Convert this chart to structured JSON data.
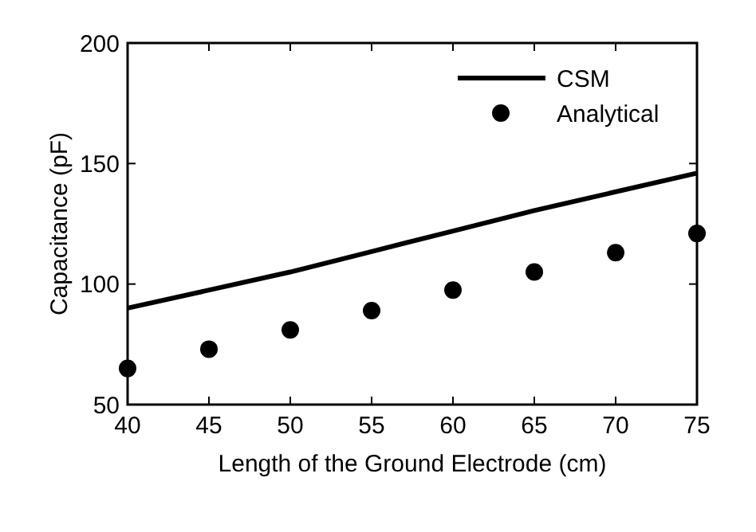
{
  "chart_data": {
    "type": "line",
    "xlabel": "Length of the Ground Electrode (cm)",
    "ylabel": "Capacitance (pF)",
    "x": [
      40,
      45,
      50,
      55,
      60,
      65,
      70,
      75
    ],
    "series": [
      {
        "name": "CSM",
        "color": "#000000",
        "marker": "none",
        "line_style": "solid",
        "x": [
          40,
          50,
          55,
          60,
          65,
          75
        ],
        "values": [
          90,
          105,
          113.5,
          122,
          130.5,
          146
        ]
      },
      {
        "name": "Analytical",
        "type": "scatter",
        "color": "#000000",
        "marker": "circle",
        "values": [
          65,
          73,
          81,
          89,
          97.5,
          105,
          113,
          121
        ]
      }
    ],
    "xlim": [
      40,
      75
    ],
    "xticks": [
      40,
      45,
      50,
      55,
      60,
      65,
      70,
      75
    ],
    "ylim": [
      50,
      200
    ],
    "yticks": [
      50,
      100,
      150,
      200
    ],
    "grid": false,
    "legend": "top right"
  }
}
